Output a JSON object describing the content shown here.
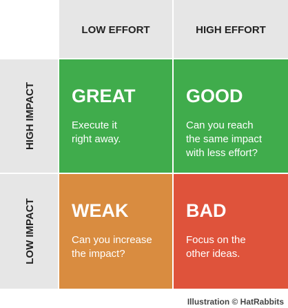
{
  "columns": [
    "LOW EFFORT",
    "HIGH EFFORT"
  ],
  "rows": [
    "HIGH IMPACT",
    "LOW IMPACT"
  ],
  "quadrants": [
    {
      "title": "GREAT",
      "lines": [
        "Execute it",
        "right away."
      ]
    },
    {
      "title": "GOOD",
      "lines": [
        "Can you reach",
        "the same impact",
        "with less effort?"
      ]
    },
    {
      "title": "WEAK",
      "lines": [
        "Can you increase",
        "the impact?"
      ]
    },
    {
      "title": "BAD",
      "lines": [
        "Focus on the",
        "other ideas."
      ]
    }
  ],
  "caption": "Illustration © HatRabbits"
}
